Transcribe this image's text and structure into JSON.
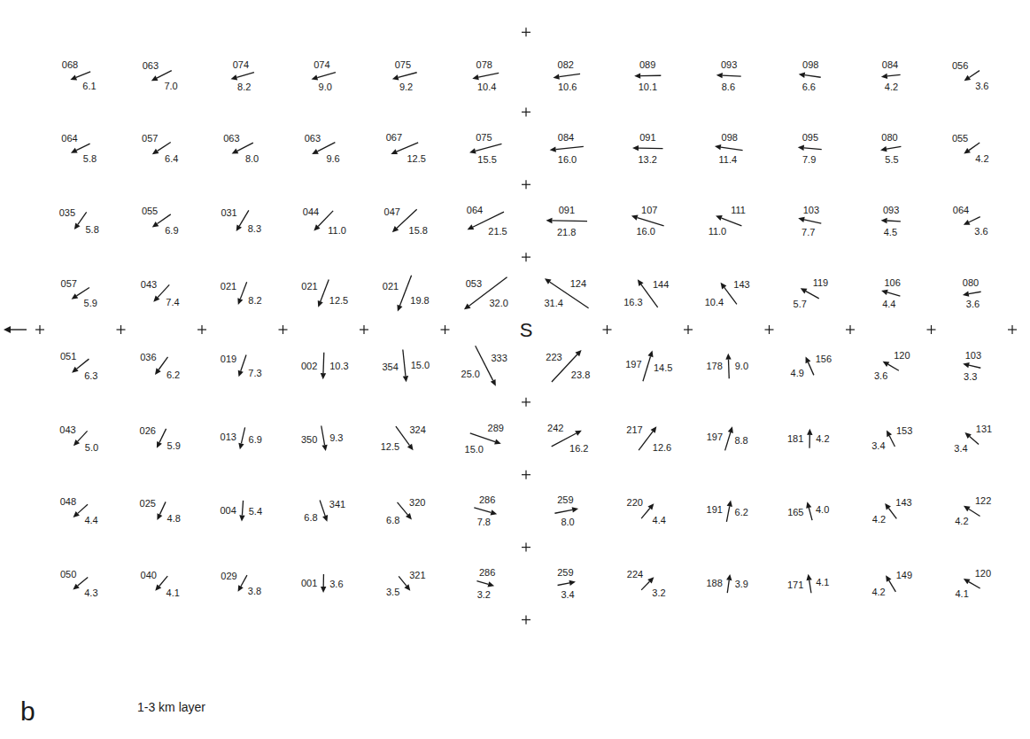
{
  "chart_data": {
    "type": "vector_field",
    "panel_label": "b",
    "caption": "1-3 km layer",
    "center_label": "S",
    "directions": [
      [
        68,
        63,
        74,
        74,
        75,
        78,
        82,
        89,
        93,
        98,
        84,
        56
      ],
      [
        64,
        57,
        63,
        63,
        67,
        75,
        84,
        91,
        98,
        95,
        80,
        55
      ],
      [
        35,
        55,
        31,
        44,
        47,
        64,
        91,
        107,
        111,
        103,
        93,
        64
      ],
      [
        57,
        43,
        21,
        21,
        21,
        53,
        124,
        144,
        143,
        119,
        106,
        80
      ],
      [
        51,
        36,
        19,
        2,
        354,
        333,
        223,
        197,
        178,
        156,
        120,
        103
      ],
      [
        43,
        26,
        13,
        350,
        324,
        289,
        242,
        217,
        197,
        181,
        153,
        131
      ],
      [
        48,
        25,
        4,
        341,
        320,
        286,
        259,
        220,
        191,
        165,
        143,
        122
      ],
      [
        50,
        40,
        29,
        1,
        321,
        286,
        259,
        224,
        188,
        171,
        149,
        120
      ]
    ],
    "speeds": [
      [
        6.1,
        7.0,
        8.2,
        9.0,
        9.2,
        10.4,
        10.6,
        10.1,
        8.6,
        6.6,
        4.2,
        3.6
      ],
      [
        5.8,
        6.4,
        8.0,
        9.6,
        12.5,
        15.5,
        16.0,
        13.2,
        11.4,
        7.9,
        5.5,
        4.2
      ],
      [
        5.8,
        6.9,
        8.3,
        11.0,
        15.8,
        21.5,
        21.8,
        16.0,
        11.0,
        7.7,
        4.5,
        3.6
      ],
      [
        5.9,
        7.4,
        8.2,
        12.5,
        19.8,
        32.0,
        31.4,
        16.3,
        10.4,
        5.7,
        4.4,
        3.6
      ],
      [
        6.3,
        6.2,
        7.3,
        10.3,
        15.0,
        25.0,
        23.8,
        14.5,
        9.0,
        4.9,
        3.6,
        3.3
      ],
      [
        5.0,
        5.9,
        6.9,
        9.3,
        12.5,
        15.0,
        16.2,
        12.6,
        8.8,
        4.2,
        3.4,
        3.4
      ],
      [
        4.4,
        4.8,
        5.4,
        6.8,
        6.8,
        7.8,
        8.0,
        4.4,
        6.2,
        4.0,
        4.2,
        4.2
      ],
      [
        4.3,
        4.1,
        3.8,
        3.6,
        3.5,
        3.2,
        3.4,
        3.2,
        3.9,
        4.1,
        4.2,
        4.1
      ]
    ]
  }
}
